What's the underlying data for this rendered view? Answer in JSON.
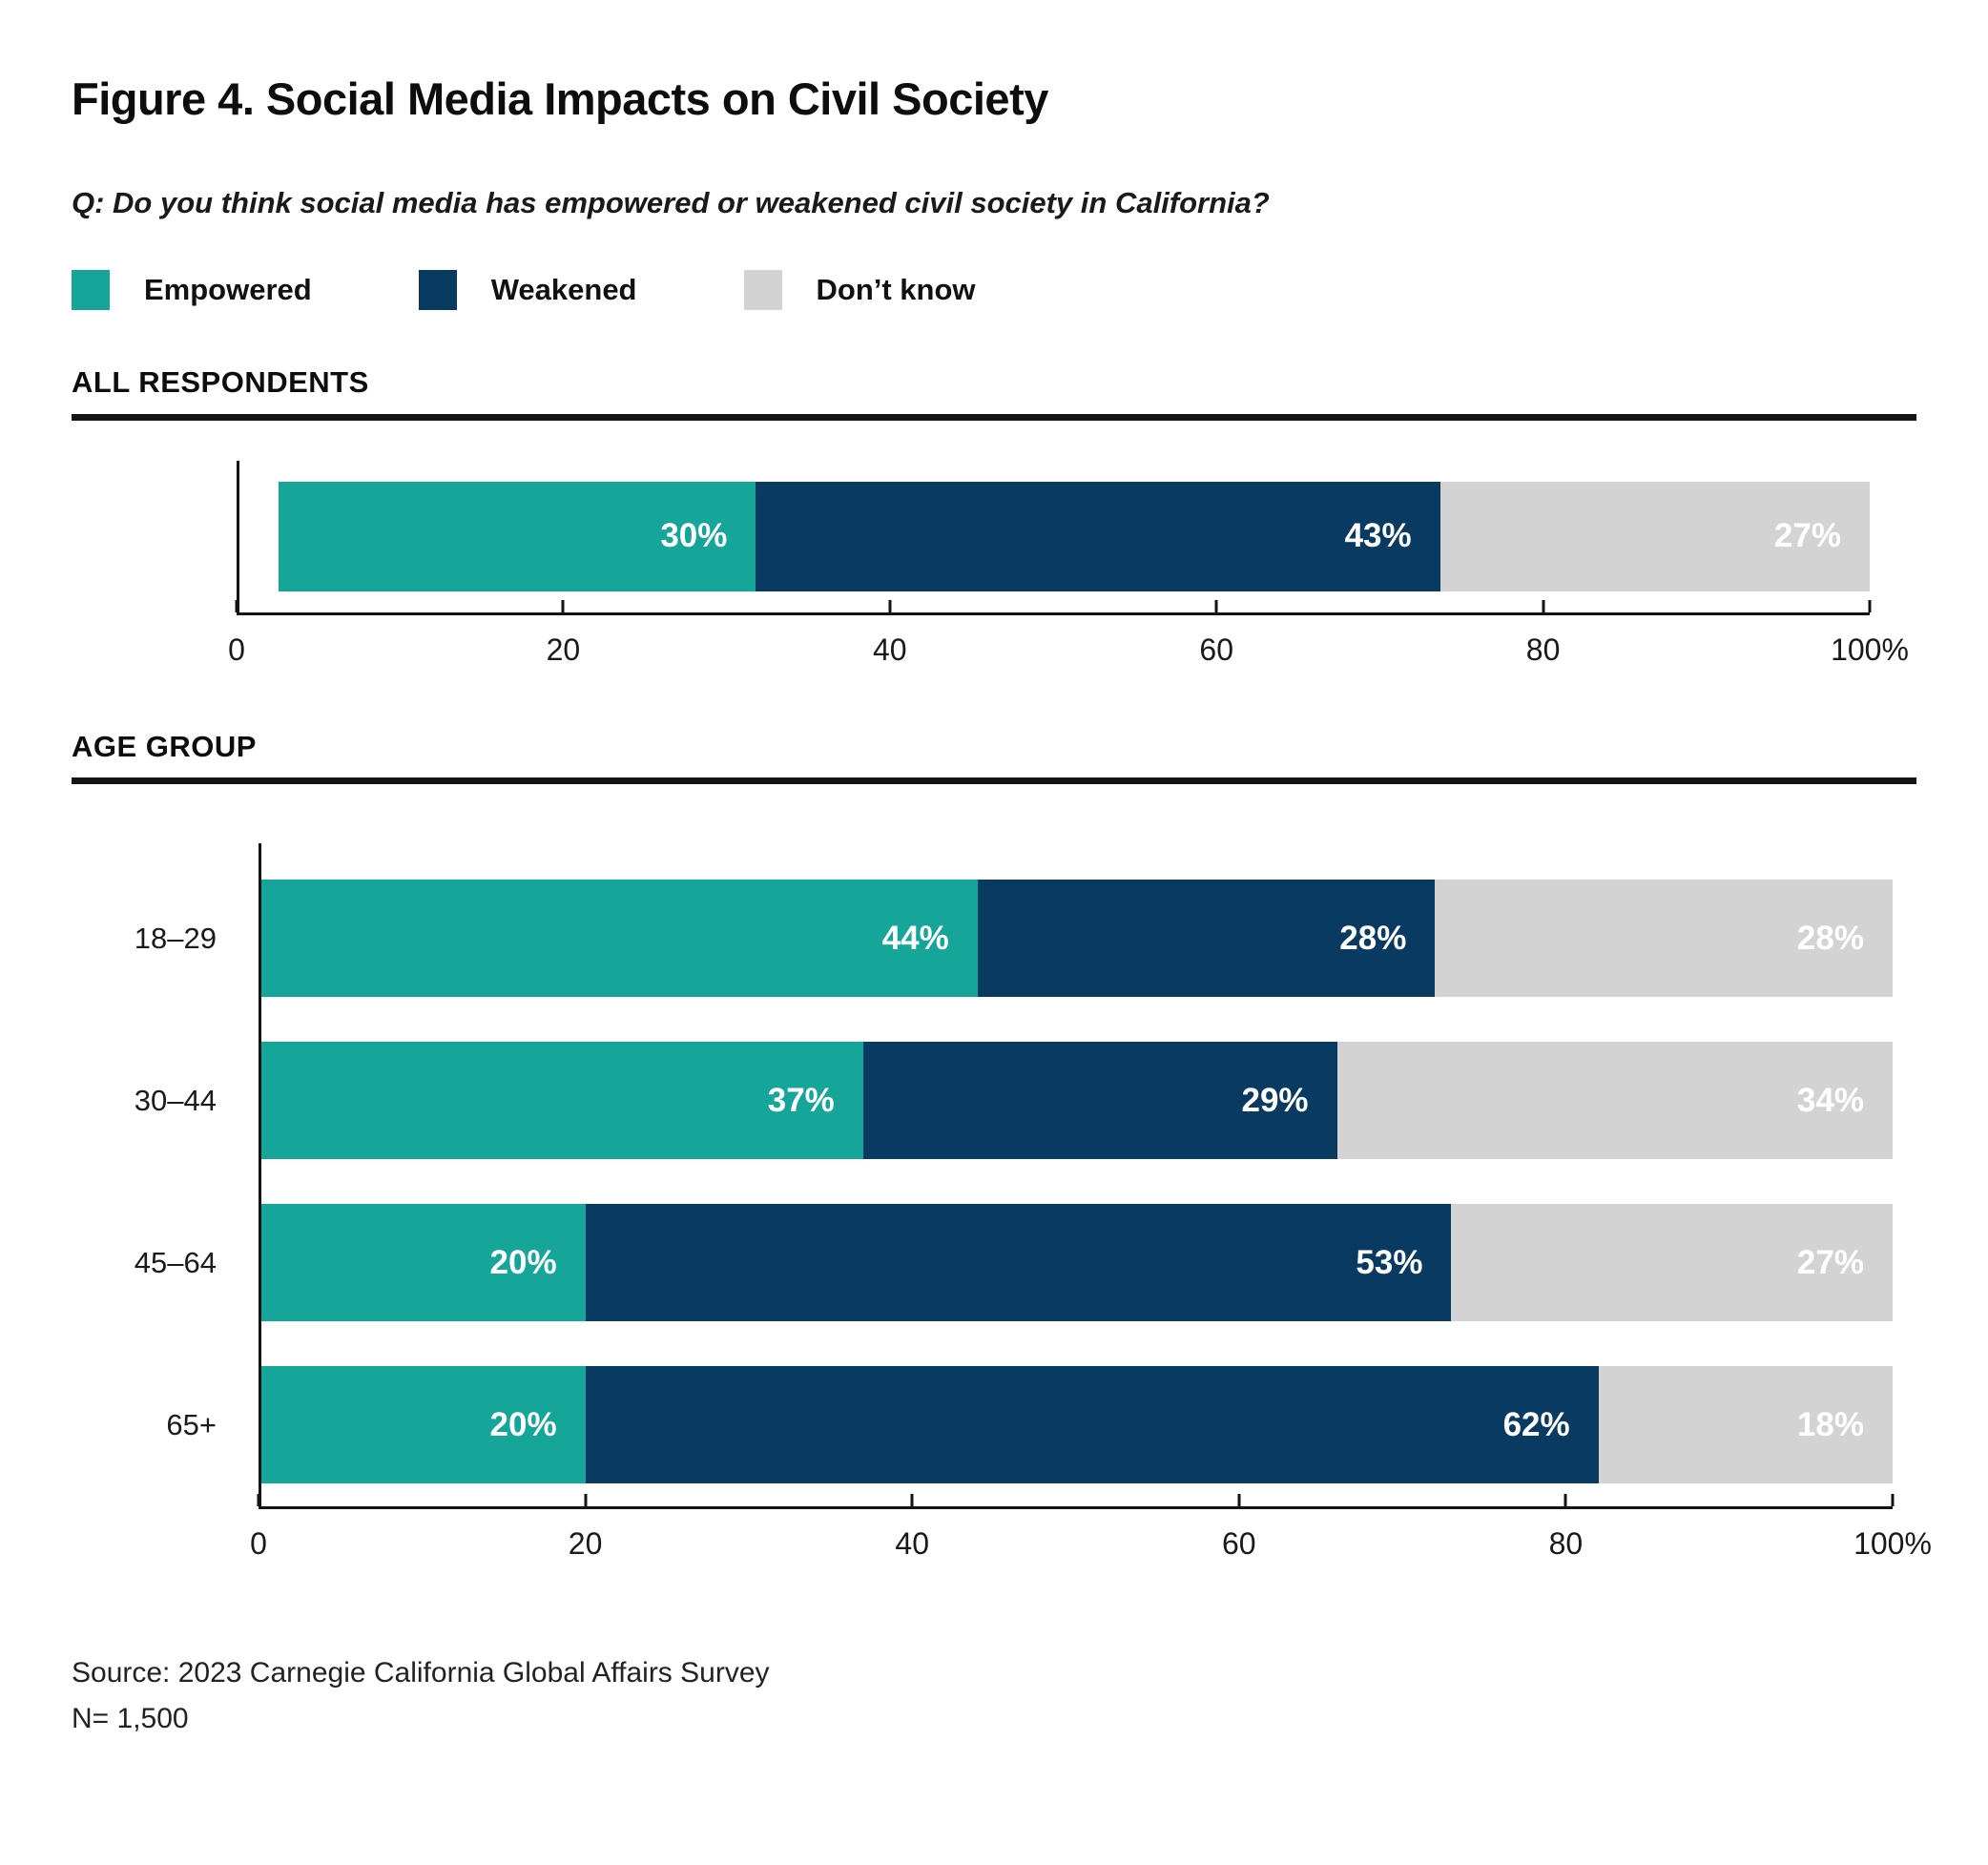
{
  "title": "Figure 4. Social Media Impacts on Civil Society",
  "question": "Q: Do you think social media has empowered or weakened civil society in California?",
  "legend": [
    {
      "label": "Empowered",
      "color": "#16A699"
    },
    {
      "label": "Weakened",
      "color": "#093A62"
    },
    {
      "label": "Don’t know",
      "color": "#D3D3D4"
    }
  ],
  "sections": [
    {
      "header": "ALL RESPONDENTS"
    },
    {
      "header": "AGE GROUP"
    }
  ],
  "chart_data": [
    {
      "type": "bar",
      "orientation": "horizontal",
      "stacked": true,
      "section": "ALL RESPONDENTS",
      "categories": [
        ""
      ],
      "series": [
        {
          "name": "Empowered",
          "color": "#16A699",
          "values": [
            30
          ]
        },
        {
          "name": "Weakened",
          "color": "#093A62",
          "values": [
            43
          ]
        },
        {
          "name": "Don’t know",
          "color": "#D3D3D4",
          "values": [
            27
          ]
        }
      ],
      "value_label_format": "{v}%",
      "xlim": [
        0,
        100
      ],
      "xticks": [
        0,
        20,
        40,
        60,
        80,
        100
      ],
      "xtick_labels": [
        "0",
        "20",
        "40",
        "60",
        "80",
        "100%"
      ],
      "grid": false,
      "legend_position": "top"
    },
    {
      "type": "bar",
      "orientation": "horizontal",
      "stacked": true,
      "section": "AGE GROUP",
      "categories": [
        "18–29",
        "30–44",
        "45–64",
        "65+"
      ],
      "series": [
        {
          "name": "Empowered",
          "color": "#16A699",
          "values": [
            44,
            37,
            20,
            20
          ]
        },
        {
          "name": "Weakened",
          "color": "#093A62",
          "values": [
            28,
            29,
            53,
            62
          ]
        },
        {
          "name": "Don’t know",
          "color": "#D3D3D4",
          "values": [
            28,
            34,
            27,
            18
          ]
        }
      ],
      "value_label_format": "{v}%",
      "xlim": [
        0,
        100
      ],
      "xticks": [
        0,
        20,
        40,
        60,
        80,
        100
      ],
      "xtick_labels": [
        "0",
        "20",
        "40",
        "60",
        "80",
        "100%"
      ],
      "grid": false,
      "legend_position": "top"
    }
  ],
  "source": "Source: 2023 Carnegie California Global Affairs Survey",
  "sample_size": "N= 1,500"
}
